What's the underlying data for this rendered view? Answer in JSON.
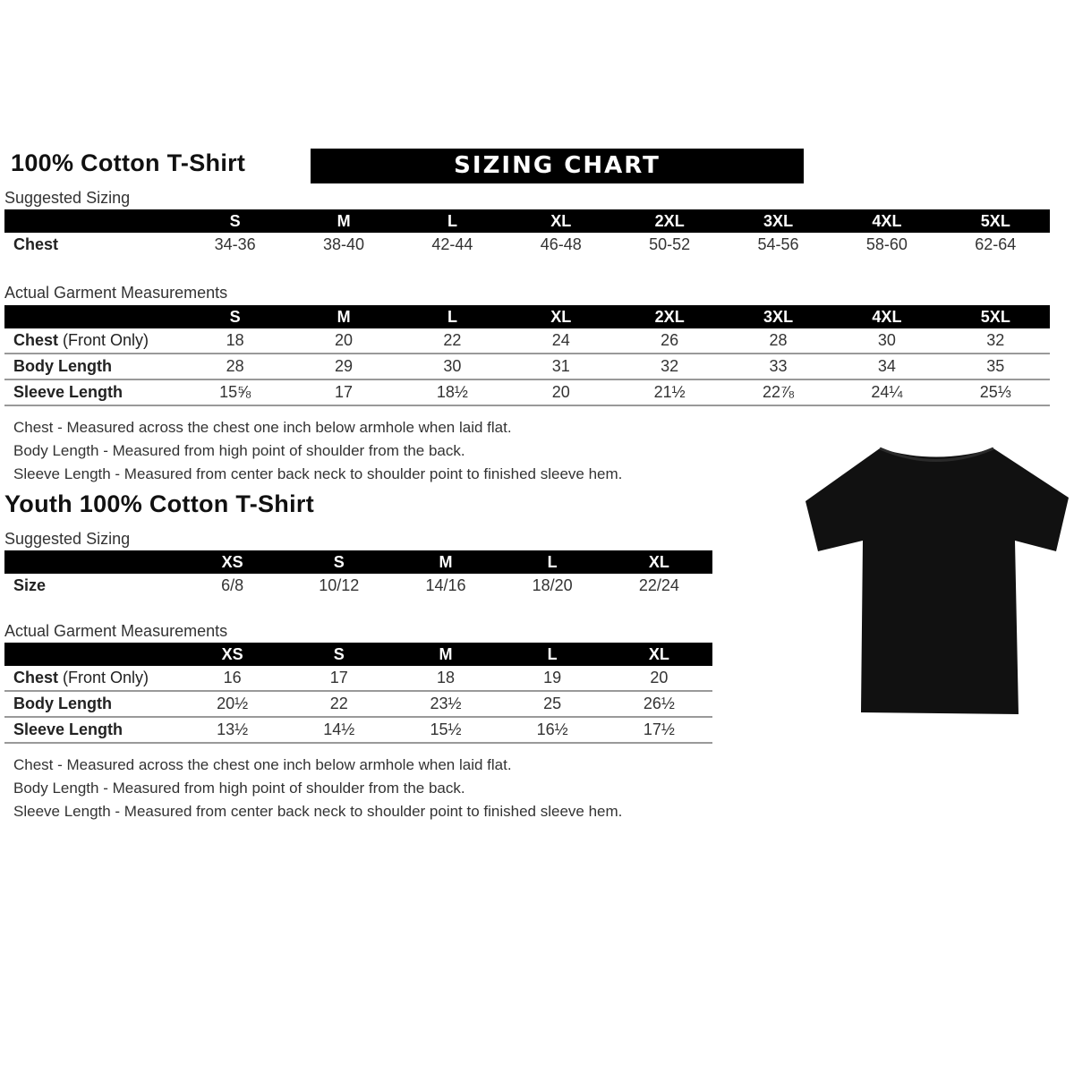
{
  "adult": {
    "title": "100% Cotton T-Shirt",
    "banner": "SIZING CHART",
    "suggested_label": "Suggested Sizing",
    "sizes": [
      "S",
      "M",
      "L",
      "XL",
      "2XL",
      "3XL",
      "4XL",
      "5XL"
    ],
    "suggested_rows": [
      {
        "label": "Chest",
        "values": [
          "34-36",
          "38-40",
          "42-44",
          "46-48",
          "50-52",
          "54-56",
          "58-60",
          "62-64"
        ]
      }
    ],
    "actual_label": "Actual Garment Measurements",
    "actual_rows": [
      {
        "label": "Chest",
        "label_suffix": "(Front Only)",
        "values": [
          "18",
          "20",
          "22",
          "24",
          "26",
          "28",
          "30",
          "32"
        ]
      },
      {
        "label": "Body Length",
        "label_suffix": "",
        "values": [
          "28",
          "29",
          "30",
          "31",
          "32",
          "33",
          "34",
          "35"
        ]
      },
      {
        "label": "Sleeve Length",
        "label_suffix": "",
        "values": [
          "15⅝",
          "17",
          "18½",
          "20",
          "21½",
          "22⅞",
          "24¼",
          "25⅓"
        ]
      }
    ],
    "notes": [
      "Chest - Measured across the chest one inch below armhole when laid flat.",
      "Body Length - Measured from high point of shoulder from the back.",
      "Sleeve Length - Measured from center back neck to shoulder point to finished sleeve hem."
    ]
  },
  "youth": {
    "title": "Youth 100% Cotton T-Shirt",
    "suggested_label": "Suggested Sizing",
    "sizes": [
      "XS",
      "S",
      "M",
      "L",
      "XL"
    ],
    "suggested_rows": [
      {
        "label": "Size",
        "values": [
          "6/8",
          "10/12",
          "14/16",
          "18/20",
          "22/24"
        ]
      }
    ],
    "actual_label": "Actual Garment Measurements",
    "actual_rows": [
      {
        "label": "Chest",
        "label_suffix": "(Front Only)",
        "values": [
          "16",
          "17",
          "18",
          "19",
          "20"
        ]
      },
      {
        "label": "Body Length",
        "label_suffix": "",
        "values": [
          "20½",
          "22",
          "23½",
          "25",
          "26½"
        ]
      },
      {
        "label": "Sleeve Length",
        "label_suffix": "",
        "values": [
          "13½",
          "14½",
          "15½",
          "16½",
          "17½"
        ]
      }
    ],
    "notes": [
      "Chest - Measured across the chest one inch below armhole when laid flat.",
      "Body Length - Measured from high point of shoulder from the back.",
      "Sleeve Length - Measured from center back neck to shoulder point to finished sleeve hem."
    ]
  },
  "image": {
    "icon": "black-tshirt-icon",
    "color": "#111111"
  }
}
